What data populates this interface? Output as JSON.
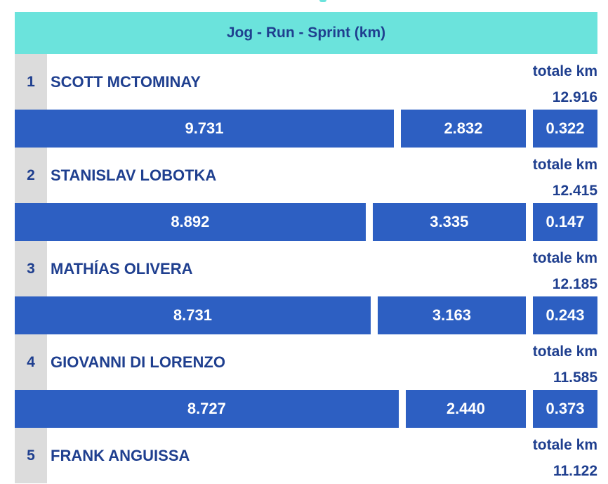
{
  "chart_data": {
    "type": "bar",
    "title": "Jog - Run - Sprint (km)",
    "total_label": "totale km",
    "segments": [
      "Jog",
      "Run",
      "Sprint"
    ],
    "colors": {
      "header_bg": "#6be3dc",
      "bar": "#2d5fc2",
      "text": "#1f3f8f",
      "rank_bg": "#dcdcdc"
    },
    "players": [
      {
        "rank": "1",
        "name": "SCOTT MCTOMINAY",
        "total": "12.916",
        "values": [
          "9.731",
          "2.832",
          "0.322"
        ]
      },
      {
        "rank": "2",
        "name": "STANISLAV LOBOTKA",
        "total": "12.415",
        "values": [
          "8.892",
          "3.335",
          "0.147"
        ]
      },
      {
        "rank": "3",
        "name": "MATHÍAS OLIVERA",
        "total": "12.185",
        "values": [
          "8.731",
          "3.163",
          "0.243"
        ]
      },
      {
        "rank": "4",
        "name": "GIOVANNI DI LORENZO",
        "total": "11.585",
        "values": [
          "8.727",
          "2.440",
          "0.373"
        ]
      },
      {
        "rank": "5",
        "name": "FRANK ANGUISSA",
        "total": "11.122"
      }
    ]
  }
}
